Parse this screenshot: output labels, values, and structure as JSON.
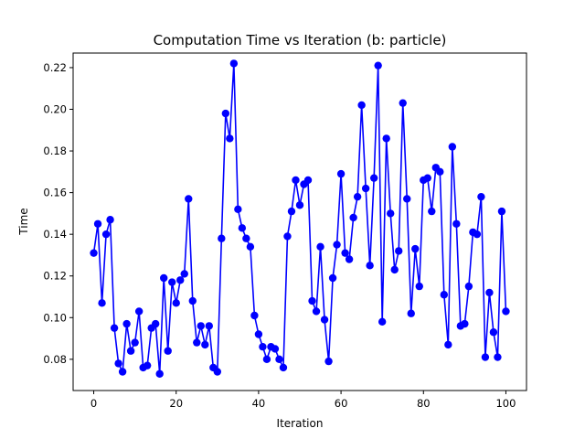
{
  "chart_data": {
    "type": "line",
    "title": "Computation Time vs Iteration (b: particle)",
    "xlabel": "Iteration",
    "ylabel": "Time",
    "xlim": [
      -5,
      105
    ],
    "ylim": [
      0.065,
      0.227
    ],
    "xticks": [
      0,
      20,
      40,
      60,
      80,
      100
    ],
    "xtick_labels": [
      "0",
      "20",
      "40",
      "60",
      "80",
      "100"
    ],
    "yticks": [
      0.08,
      0.1,
      0.12,
      0.14,
      0.16,
      0.18,
      0.2,
      0.22
    ],
    "ytick_labels": [
      "0.08",
      "0.10",
      "0.12",
      "0.14",
      "0.16",
      "0.18",
      "0.20",
      "0.22"
    ],
    "grid": false,
    "series": [
      {
        "color": "#0000ff",
        "marker": "circle",
        "x": [
          0,
          1,
          2,
          3,
          4,
          5,
          6,
          7,
          8,
          9,
          10,
          11,
          12,
          13,
          14,
          15,
          16,
          17,
          18,
          19,
          20,
          21,
          22,
          23,
          24,
          25,
          26,
          27,
          28,
          29,
          30,
          31,
          32,
          33,
          34,
          35,
          36,
          37,
          38,
          39,
          40,
          41,
          42,
          43,
          44,
          45,
          46,
          47,
          48,
          49,
          50,
          51,
          52,
          53,
          54,
          55,
          56,
          57,
          58,
          59,
          60,
          61,
          62,
          63,
          64,
          65,
          66,
          67,
          68,
          69,
          70,
          71,
          72,
          73,
          74,
          75,
          76,
          77,
          78,
          79,
          80,
          81,
          82,
          83,
          84,
          85,
          86,
          87,
          88,
          89,
          90,
          91,
          92,
          93,
          94,
          95,
          96,
          97,
          98,
          99,
          100
        ],
        "y": [
          0.131,
          0.145,
          0.107,
          0.14,
          0.147,
          0.095,
          0.078,
          0.074,
          0.097,
          0.084,
          0.088,
          0.103,
          0.076,
          0.077,
          0.095,
          0.097,
          0.073,
          0.119,
          0.084,
          0.117,
          0.107,
          0.118,
          0.121,
          0.157,
          0.108,
          0.088,
          0.096,
          0.087,
          0.096,
          0.076,
          0.074,
          0.138,
          0.198,
          0.186,
          0.222,
          0.152,
          0.143,
          0.138,
          0.134,
          0.101,
          0.092,
          0.086,
          0.08,
          0.086,
          0.085,
          0.08,
          0.076,
          0.139,
          0.151,
          0.166,
          0.154,
          0.164,
          0.166,
          0.108,
          0.103,
          0.134,
          0.099,
          0.079,
          0.119,
          0.135,
          0.169,
          0.131,
          0.128,
          0.148,
          0.158,
          0.202,
          0.162,
          0.125,
          0.167,
          0.221,
          0.098,
          0.186,
          0.15,
          0.123,
          0.132,
          0.203,
          0.157,
          0.102,
          0.133,
          0.115,
          0.166,
          0.167,
          0.151,
          0.172,
          0.17,
          0.111,
          0.087,
          0.182,
          0.145,
          0.096,
          0.097,
          0.115,
          0.141,
          0.14,
          0.158,
          0.081,
          0.112,
          0.093,
          0.081,
          0.151,
          0.103
        ]
      }
    ]
  }
}
